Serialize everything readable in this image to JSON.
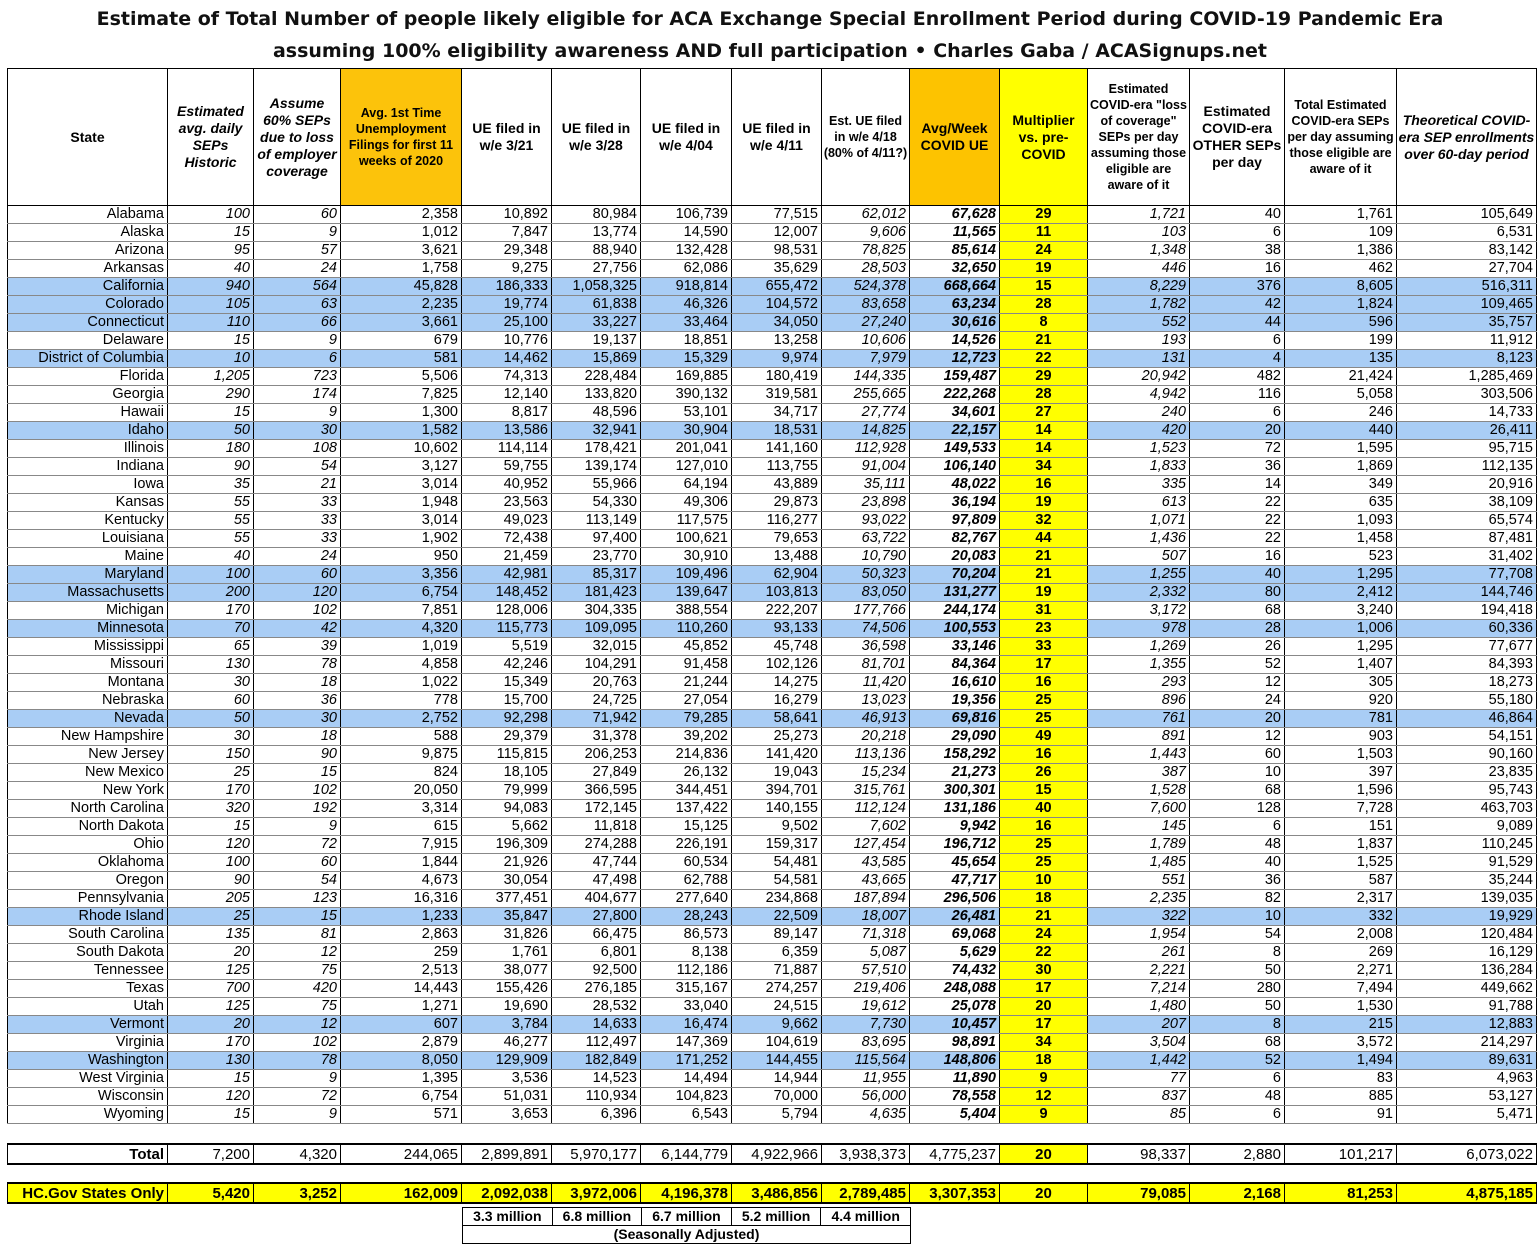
{
  "title_line1": "Estimate of Total Number of people likely eligible for ACA Exchange Special Enrollment Period during COVID-19 Pandemic Era",
  "title_line2": "assuming 100% eligibility awareness AND full participation  •  Charles Gaba / ACASignups.net",
  "colors": {
    "state_based_exchange_row": "#a9cdf5",
    "highlight_yellow": "#ffff00",
    "highlight_orange": "#fcc30b"
  },
  "headers": [
    "State",
    "Estimated avg. daily SEPs Historic",
    "Assume 60% SEPs due to loss of employer coverage",
    "Avg. 1st Time Unemployment Filings for first 11 weeks of 2020",
    "UE filed in w/e 3/21",
    "UE filed in w/e 3/28",
    "UE filed in w/e 4/04",
    "UE filed in w/e 4/11",
    "Est. UE filed in w/e 4/18 (80% of 4/11?)",
    "Avg/Week COVID UE",
    "Multiplier vs. pre-COVID",
    "Estimated COVID-era \"loss of coverage\" SEPs per day assuming those eligible are aware of it",
    "Estimated COVID-era OTHER SEPs per day",
    "Total Estimated COVID-era SEPs per day assuming those eligible are aware of it",
    "Theoretical COVID-era SEP enrollments over 60-day period"
  ],
  "rows": [
    {
      "sbm": false,
      "cells": [
        "Alabama",
        "100",
        "60",
        "2,358",
        "10,892",
        "80,984",
        "106,739",
        "77,515",
        "62,012",
        "67,628",
        "29",
        "1,721",
        "40",
        "1,761",
        "105,649"
      ]
    },
    {
      "sbm": false,
      "cells": [
        "Alaska",
        "15",
        "9",
        "1,012",
        "7,847",
        "13,774",
        "14,590",
        "12,007",
        "9,606",
        "11,565",
        "11",
        "103",
        "6",
        "109",
        "6,531"
      ]
    },
    {
      "sbm": false,
      "cells": [
        "Arizona",
        "95",
        "57",
        "3,621",
        "29,348",
        "88,940",
        "132,428",
        "98,531",
        "78,825",
        "85,614",
        "24",
        "1,348",
        "38",
        "1,386",
        "83,142"
      ]
    },
    {
      "sbm": false,
      "cells": [
        "Arkansas",
        "40",
        "24",
        "1,758",
        "9,275",
        "27,756",
        "62,086",
        "35,629",
        "28,503",
        "32,650",
        "19",
        "446",
        "16",
        "462",
        "27,704"
      ]
    },
    {
      "sbm": true,
      "cells": [
        "California",
        "940",
        "564",
        "45,828",
        "186,333",
        "1,058,325",
        "918,814",
        "655,472",
        "524,378",
        "668,664",
        "15",
        "8,229",
        "376",
        "8,605",
        "516,311"
      ]
    },
    {
      "sbm": true,
      "cells": [
        "Colorado",
        "105",
        "63",
        "2,235",
        "19,774",
        "61,838",
        "46,326",
        "104,572",
        "83,658",
        "63,234",
        "28",
        "1,782",
        "42",
        "1,824",
        "109,465"
      ]
    },
    {
      "sbm": true,
      "cells": [
        "Connecticut",
        "110",
        "66",
        "3,661",
        "25,100",
        "33,227",
        "33,464",
        "34,050",
        "27,240",
        "30,616",
        "8",
        "552",
        "44",
        "596",
        "35,757"
      ]
    },
    {
      "sbm": false,
      "cells": [
        "Delaware",
        "15",
        "9",
        "679",
        "10,776",
        "19,137",
        "18,851",
        "13,258",
        "10,606",
        "14,526",
        "21",
        "193",
        "6",
        "199",
        "11,912"
      ]
    },
    {
      "sbm": true,
      "cells": [
        "District of Columbia",
        "10",
        "6",
        "581",
        "14,462",
        "15,869",
        "15,329",
        "9,974",
        "7,979",
        "12,723",
        "22",
        "131",
        "4",
        "135",
        "8,123"
      ]
    },
    {
      "sbm": false,
      "cells": [
        "Florida",
        "1,205",
        "723",
        "5,506",
        "74,313",
        "228,484",
        "169,885",
        "180,419",
        "144,335",
        "159,487",
        "29",
        "20,942",
        "482",
        "21,424",
        "1,285,469"
      ]
    },
    {
      "sbm": false,
      "cells": [
        "Georgia",
        "290",
        "174",
        "7,825",
        "12,140",
        "133,820",
        "390,132",
        "319,581",
        "255,665",
        "222,268",
        "28",
        "4,942",
        "116",
        "5,058",
        "303,506"
      ]
    },
    {
      "sbm": false,
      "cells": [
        "Hawaii",
        "15",
        "9",
        "1,300",
        "8,817",
        "48,596",
        "53,101",
        "34,717",
        "27,774",
        "34,601",
        "27",
        "240",
        "6",
        "246",
        "14,733"
      ]
    },
    {
      "sbm": true,
      "cells": [
        "Idaho",
        "50",
        "30",
        "1,582",
        "13,586",
        "32,941",
        "30,904",
        "18,531",
        "14,825",
        "22,157",
        "14",
        "420",
        "20",
        "440",
        "26,411"
      ]
    },
    {
      "sbm": false,
      "cells": [
        "Illinois",
        "180",
        "108",
        "10,602",
        "114,114",
        "178,421",
        "201,041",
        "141,160",
        "112,928",
        "149,533",
        "14",
        "1,523",
        "72",
        "1,595",
        "95,715"
      ]
    },
    {
      "sbm": false,
      "cells": [
        "Indiana",
        "90",
        "54",
        "3,127",
        "59,755",
        "139,174",
        "127,010",
        "113,755",
        "91,004",
        "106,140",
        "34",
        "1,833",
        "36",
        "1,869",
        "112,135"
      ]
    },
    {
      "sbm": false,
      "cells": [
        "Iowa",
        "35",
        "21",
        "3,014",
        "40,952",
        "55,966",
        "64,194",
        "43,889",
        "35,111",
        "48,022",
        "16",
        "335",
        "14",
        "349",
        "20,916"
      ]
    },
    {
      "sbm": false,
      "cells": [
        "Kansas",
        "55",
        "33",
        "1,948",
        "23,563",
        "54,330",
        "49,306",
        "29,873",
        "23,898",
        "36,194",
        "19",
        "613",
        "22",
        "635",
        "38,109"
      ]
    },
    {
      "sbm": false,
      "cells": [
        "Kentucky",
        "55",
        "33",
        "3,014",
        "49,023",
        "113,149",
        "117,575",
        "116,277",
        "93,022",
        "97,809",
        "32",
        "1,071",
        "22",
        "1,093",
        "65,574"
      ]
    },
    {
      "sbm": false,
      "cells": [
        "Louisiana",
        "55",
        "33",
        "1,902",
        "72,438",
        "97,400",
        "100,621",
        "79,653",
        "63,722",
        "82,767",
        "44",
        "1,436",
        "22",
        "1,458",
        "87,481"
      ]
    },
    {
      "sbm": false,
      "cells": [
        "Maine",
        "40",
        "24",
        "950",
        "21,459",
        "23,770",
        "30,910",
        "13,488",
        "10,790",
        "20,083",
        "21",
        "507",
        "16",
        "523",
        "31,402"
      ]
    },
    {
      "sbm": true,
      "cells": [
        "Maryland",
        "100",
        "60",
        "3,356",
        "42,981",
        "85,317",
        "109,496",
        "62,904",
        "50,323",
        "70,204",
        "21",
        "1,255",
        "40",
        "1,295",
        "77,708"
      ]
    },
    {
      "sbm": true,
      "cells": [
        "Massachusetts",
        "200",
        "120",
        "6,754",
        "148,452",
        "181,423",
        "139,647",
        "103,813",
        "83,050",
        "131,277",
        "19",
        "2,332",
        "80",
        "2,412",
        "144,746"
      ]
    },
    {
      "sbm": false,
      "cells": [
        "Michigan",
        "170",
        "102",
        "7,851",
        "128,006",
        "304,335",
        "388,554",
        "222,207",
        "177,766",
        "244,174",
        "31",
        "3,172",
        "68",
        "3,240",
        "194,418"
      ]
    },
    {
      "sbm": true,
      "cells": [
        "Minnesota",
        "70",
        "42",
        "4,320",
        "115,773",
        "109,095",
        "110,260",
        "93,133",
        "74,506",
        "100,553",
        "23",
        "978",
        "28",
        "1,006",
        "60,336"
      ]
    },
    {
      "sbm": false,
      "cells": [
        "Mississippi",
        "65",
        "39",
        "1,019",
        "5,519",
        "32,015",
        "45,852",
        "45,748",
        "36,598",
        "33,146",
        "33",
        "1,269",
        "26",
        "1,295",
        "77,677"
      ]
    },
    {
      "sbm": false,
      "cells": [
        "Missouri",
        "130",
        "78",
        "4,858",
        "42,246",
        "104,291",
        "91,458",
        "102,126",
        "81,701",
        "84,364",
        "17",
        "1,355",
        "52",
        "1,407",
        "84,393"
      ]
    },
    {
      "sbm": false,
      "cells": [
        "Montana",
        "30",
        "18",
        "1,022",
        "15,349",
        "20,763",
        "21,244",
        "14,275",
        "11,420",
        "16,610",
        "16",
        "293",
        "12",
        "305",
        "18,273"
      ]
    },
    {
      "sbm": false,
      "cells": [
        "Nebraska",
        "60",
        "36",
        "778",
        "15,700",
        "24,725",
        "27,054",
        "16,279",
        "13,023",
        "19,356",
        "25",
        "896",
        "24",
        "920",
        "55,180"
      ]
    },
    {
      "sbm": true,
      "cells": [
        "Nevada",
        "50",
        "30",
        "2,752",
        "92,298",
        "71,942",
        "79,285",
        "58,641",
        "46,913",
        "69,816",
        "25",
        "761",
        "20",
        "781",
        "46,864"
      ]
    },
    {
      "sbm": false,
      "cells": [
        "New Hampshire",
        "30",
        "18",
        "588",
        "29,379",
        "31,378",
        "39,202",
        "25,273",
        "20,218",
        "29,090",
        "49",
        "891",
        "12",
        "903",
        "54,151"
      ]
    },
    {
      "sbm": false,
      "cells": [
        "New Jersey",
        "150",
        "90",
        "9,875",
        "115,815",
        "206,253",
        "214,836",
        "141,420",
        "113,136",
        "158,292",
        "16",
        "1,443",
        "60",
        "1,503",
        "90,160"
      ]
    },
    {
      "sbm": false,
      "cells": [
        "New Mexico",
        "25",
        "15",
        "824",
        "18,105",
        "27,849",
        "26,132",
        "19,043",
        "15,234",
        "21,273",
        "26",
        "387",
        "10",
        "397",
        "23,835"
      ]
    },
    {
      "sbm": false,
      "cells": [
        "New York",
        "170",
        "102",
        "20,050",
        "79,999",
        "366,595",
        "344,451",
        "394,701",
        "315,761",
        "300,301",
        "15",
        "1,528",
        "68",
        "1,596",
        "95,743"
      ]
    },
    {
      "sbm": false,
      "cells": [
        "North Carolina",
        "320",
        "192",
        "3,314",
        "94,083",
        "172,145",
        "137,422",
        "140,155",
        "112,124",
        "131,186",
        "40",
        "7,600",
        "128",
        "7,728",
        "463,703"
      ]
    },
    {
      "sbm": false,
      "cells": [
        "North Dakota",
        "15",
        "9",
        "615",
        "5,662",
        "11,818",
        "15,125",
        "9,502",
        "7,602",
        "9,942",
        "16",
        "145",
        "6",
        "151",
        "9,089"
      ]
    },
    {
      "sbm": false,
      "cells": [
        "Ohio",
        "120",
        "72",
        "7,915",
        "196,309",
        "274,288",
        "226,191",
        "159,317",
        "127,454",
        "196,712",
        "25",
        "1,789",
        "48",
        "1,837",
        "110,245"
      ]
    },
    {
      "sbm": false,
      "cells": [
        "Oklahoma",
        "100",
        "60",
        "1,844",
        "21,926",
        "47,744",
        "60,534",
        "54,481",
        "43,585",
        "45,654",
        "25",
        "1,485",
        "40",
        "1,525",
        "91,529"
      ]
    },
    {
      "sbm": false,
      "cells": [
        "Oregon",
        "90",
        "54",
        "4,673",
        "30,054",
        "47,498",
        "62,788",
        "54,581",
        "43,665",
        "47,717",
        "10",
        "551",
        "36",
        "587",
        "35,244"
      ]
    },
    {
      "sbm": false,
      "cells": [
        "Pennsylvania",
        "205",
        "123",
        "16,316",
        "377,451",
        "404,677",
        "277,640",
        "234,868",
        "187,894",
        "296,506",
        "18",
        "2,235",
        "82",
        "2,317",
        "139,035"
      ]
    },
    {
      "sbm": true,
      "cells": [
        "Rhode Island",
        "25",
        "15",
        "1,233",
        "35,847",
        "27,800",
        "28,243",
        "22,509",
        "18,007",
        "26,481",
        "21",
        "322",
        "10",
        "332",
        "19,929"
      ]
    },
    {
      "sbm": false,
      "cells": [
        "South Carolina",
        "135",
        "81",
        "2,863",
        "31,826",
        "66,475",
        "86,573",
        "89,147",
        "71,318",
        "69,068",
        "24",
        "1,954",
        "54",
        "2,008",
        "120,484"
      ]
    },
    {
      "sbm": false,
      "cells": [
        "South Dakota",
        "20",
        "12",
        "259",
        "1,761",
        "6,801",
        "8,138",
        "6,359",
        "5,087",
        "5,629",
        "22",
        "261",
        "8",
        "269",
        "16,129"
      ]
    },
    {
      "sbm": false,
      "cells": [
        "Tennessee",
        "125",
        "75",
        "2,513",
        "38,077",
        "92,500",
        "112,186",
        "71,887",
        "57,510",
        "74,432",
        "30",
        "2,221",
        "50",
        "2,271",
        "136,284"
      ]
    },
    {
      "sbm": false,
      "cells": [
        "Texas",
        "700",
        "420",
        "14,443",
        "155,426",
        "276,185",
        "315,167",
        "274,257",
        "219,406",
        "248,088",
        "17",
        "7,214",
        "280",
        "7,494",
        "449,662"
      ]
    },
    {
      "sbm": false,
      "cells": [
        "Utah",
        "125",
        "75",
        "1,271",
        "19,690",
        "28,532",
        "33,040",
        "24,515",
        "19,612",
        "25,078",
        "20",
        "1,480",
        "50",
        "1,530",
        "91,788"
      ]
    },
    {
      "sbm": true,
      "cells": [
        "Vermont",
        "20",
        "12",
        "607",
        "3,784",
        "14,633",
        "16,474",
        "9,662",
        "7,730",
        "10,457",
        "17",
        "207",
        "8",
        "215",
        "12,883"
      ]
    },
    {
      "sbm": false,
      "cells": [
        "Virginia",
        "170",
        "102",
        "2,879",
        "46,277",
        "112,497",
        "147,369",
        "104,619",
        "83,695",
        "98,891",
        "34",
        "3,504",
        "68",
        "3,572",
        "214,297"
      ]
    },
    {
      "sbm": true,
      "cells": [
        "Washington",
        "130",
        "78",
        "8,050",
        "129,909",
        "182,849",
        "171,252",
        "144,455",
        "115,564",
        "148,806",
        "18",
        "1,442",
        "52",
        "1,494",
        "89,631"
      ]
    },
    {
      "sbm": false,
      "cells": [
        "West Virginia",
        "15",
        "9",
        "1,395",
        "3,536",
        "14,523",
        "14,494",
        "14,944",
        "11,955",
        "11,890",
        "9",
        "77",
        "6",
        "83",
        "4,963"
      ]
    },
    {
      "sbm": false,
      "cells": [
        "Wisconsin",
        "120",
        "72",
        "6,754",
        "51,031",
        "110,934",
        "104,823",
        "70,000",
        "56,000",
        "78,558",
        "12",
        "837",
        "48",
        "885",
        "53,127"
      ]
    },
    {
      "sbm": false,
      "cells": [
        "Wyoming",
        "15",
        "9",
        "571",
        "3,653",
        "6,396",
        "6,543",
        "5,794",
        "4,635",
        "5,404",
        "9",
        "85",
        "6",
        "91",
        "5,471"
      ]
    }
  ],
  "total": [
    "Total",
    "7,200",
    "4,320",
    "244,065",
    "2,899,891",
    "5,970,177",
    "6,144,779",
    "4,922,966",
    "3,938,373",
    "4,775,237",
    "20",
    "98,337",
    "2,880",
    "101,217",
    "6,073,022"
  ],
  "hc_gov": [
    "HC.Gov States Only",
    "5,420",
    "3,252",
    "162,009",
    "2,092,038",
    "3,972,006",
    "4,196,378",
    "3,486,856",
    "2,789,485",
    "3,307,353",
    "20",
    "79,085",
    "2,168",
    "81,253",
    "4,875,185"
  ],
  "seasonally_adjusted": {
    "values": [
      "3.3 million",
      "6.8 million",
      "6.7 million",
      "5.2 million",
      "4.4 million"
    ],
    "label": "(Seasonally Adjusted)"
  }
}
